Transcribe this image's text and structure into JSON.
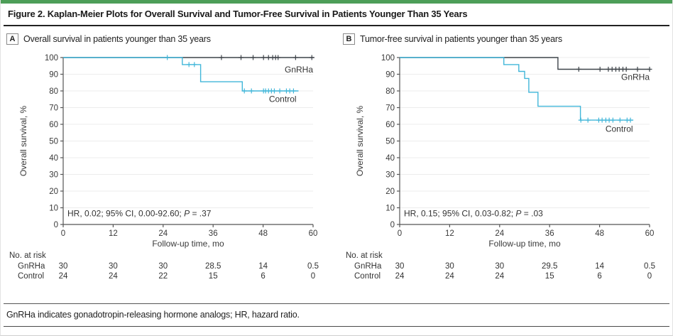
{
  "figure": {
    "title": "Figure 2. Kaplan-Meier Plots for Overall Survival and Tumor-Free Survival in Patients Younger Than 35 Years",
    "footnote": "GnRHa indicates gonadotropin-releasing hormone analogs; HR, hazard ratio.",
    "accent_color": "#4d9e58"
  },
  "colors": {
    "gnrha": "#3d4349",
    "control": "#41b6d9",
    "grid": "#ececec",
    "axis": "#555555",
    "text": "#3a3a3a"
  },
  "chart_data": [
    {
      "type": "line",
      "subtype": "kaplan-meier-step",
      "panel_label": "A",
      "panel_title": "Overall survival in patients younger than 35 years",
      "xlabel": "Follow-up time, mo",
      "ylabel": "Overall survival, %",
      "xlim": [
        0,
        60
      ],
      "ylim": [
        0,
        100
      ],
      "xticks": [
        0,
        12,
        24,
        36,
        48,
        60
      ],
      "yticks": [
        0,
        10,
        20,
        30,
        40,
        50,
        60,
        70,
        80,
        90,
        100
      ],
      "grid": "horizontal-light",
      "annotation": {
        "pre": "HR, 0.02; 95% CI, 0.00-92.60; ",
        "p": "P",
        "post": " = .37"
      },
      "series": [
        {
          "name": "GnRHa",
          "color": "#3d4349",
          "steps": [
            [
              0,
              100
            ],
            [
              60.3,
              100
            ]
          ],
          "censors": [
            [
              38,
              100
            ],
            [
              42.7,
              100
            ],
            [
              45.6,
              100
            ],
            [
              48.1,
              100
            ],
            [
              49.3,
              100
            ],
            [
              50.3,
              100
            ],
            [
              51,
              100
            ],
            [
              51.6,
              100
            ],
            [
              55.8,
              100
            ],
            [
              59.7,
              100
            ]
          ],
          "label": {
            "text": "GnRHa",
            "x": 60,
            "y": 91,
            "anchor": "end"
          }
        },
        {
          "name": "Control",
          "color": "#41b6d9",
          "steps": [
            [
              0,
              100
            ],
            [
              28.6,
              100
            ],
            [
              28.6,
              95.8
            ],
            [
              33,
              95.8
            ],
            [
              33,
              85.5
            ],
            [
              43,
              85.5
            ],
            [
              43,
              80
            ],
            [
              56.5,
              80
            ]
          ],
          "censors": [
            [
              25,
              100
            ],
            [
              30.2,
              95.8
            ],
            [
              31.5,
              95.8
            ],
            [
              43.5,
              80
            ],
            [
              45.2,
              80
            ],
            [
              48.1,
              80
            ],
            [
              48.6,
              80
            ],
            [
              49.3,
              80
            ],
            [
              50,
              80
            ],
            [
              50.7,
              80
            ],
            [
              52,
              80
            ],
            [
              53.6,
              80
            ],
            [
              54.4,
              80
            ],
            [
              55.3,
              80
            ]
          ],
          "label": {
            "text": "Control",
            "x": 56,
            "y": 73.5,
            "anchor": "end"
          }
        }
      ],
      "at_risk": {
        "header": "No. at risk",
        "rows": [
          {
            "label": "GnRHa",
            "values": [
              "30",
              "30",
              "30",
              "28.5",
              "14",
              "0.5"
            ]
          },
          {
            "label": "Control",
            "values": [
              "24",
              "24",
              "22",
              "15",
              "6",
              "0"
            ]
          }
        ]
      }
    },
    {
      "type": "line",
      "subtype": "kaplan-meier-step",
      "panel_label": "B",
      "panel_title": "Tumor-free survival in patients younger than 35 years",
      "xlabel": "Follow-up time, mo",
      "ylabel": "Overall survival, %",
      "xlim": [
        0,
        60
      ],
      "ylim": [
        0,
        100
      ],
      "xticks": [
        0,
        12,
        24,
        36,
        48,
        60
      ],
      "yticks": [
        0,
        10,
        20,
        30,
        40,
        50,
        60,
        70,
        80,
        90,
        100
      ],
      "grid": "horizontal-light",
      "annotation": {
        "pre": "HR, 0.15; 95% CI, 0.03-0.82; ",
        "p": "P",
        "post": " = .03"
      },
      "series": [
        {
          "name": "GnRHa",
          "color": "#3d4349",
          "steps": [
            [
              0,
              100
            ],
            [
              38,
              100
            ],
            [
              38,
              93
            ],
            [
              60.2,
              93
            ]
          ],
          "censors": [
            [
              43,
              93
            ],
            [
              48.1,
              93
            ],
            [
              50.1,
              93
            ],
            [
              51,
              93
            ],
            [
              51.9,
              93
            ],
            [
              52.7,
              93
            ],
            [
              53.6,
              93
            ],
            [
              54.4,
              93
            ],
            [
              57.1,
              93
            ],
            [
              60,
              93
            ]
          ],
          "label": {
            "text": "GnRHa",
            "x": 60,
            "y": 86.5,
            "anchor": "end"
          }
        },
        {
          "name": "Control",
          "color": "#41b6d9",
          "steps": [
            [
              0,
              100
            ],
            [
              25,
              100
            ],
            [
              25,
              95.8
            ],
            [
              28.6,
              95.8
            ],
            [
              28.6,
              91.7
            ],
            [
              30,
              91.7
            ],
            [
              30,
              87.5
            ],
            [
              31,
              87.5
            ],
            [
              31,
              79.2
            ],
            [
              33.2,
              79.2
            ],
            [
              33.2,
              70.8
            ],
            [
              43.4,
              70.8
            ],
            [
              43.4,
              62.5
            ],
            [
              56.1,
              62.5
            ]
          ],
          "censors": [
            [
              43.5,
              62.5
            ],
            [
              45.2,
              62.5
            ],
            [
              47.8,
              62.5
            ],
            [
              48.6,
              62.5
            ],
            [
              49.5,
              62.5
            ],
            [
              50.3,
              62.5
            ],
            [
              51.2,
              62.5
            ],
            [
              52.9,
              62.5
            ],
            [
              54.6,
              62.5
            ],
            [
              55.4,
              62.5
            ]
          ],
          "label": {
            "text": "Control",
            "x": 56,
            "y": 55.5,
            "anchor": "end"
          }
        }
      ],
      "at_risk": {
        "header": "No. at risk",
        "rows": [
          {
            "label": "GnRHa",
            "values": [
              "30",
              "30",
              "30",
              "29.5",
              "14",
              "0.5"
            ]
          },
          {
            "label": "Control",
            "values": [
              "24",
              "24",
              "24",
              "15",
              "6",
              "0"
            ]
          }
        ]
      }
    }
  ]
}
